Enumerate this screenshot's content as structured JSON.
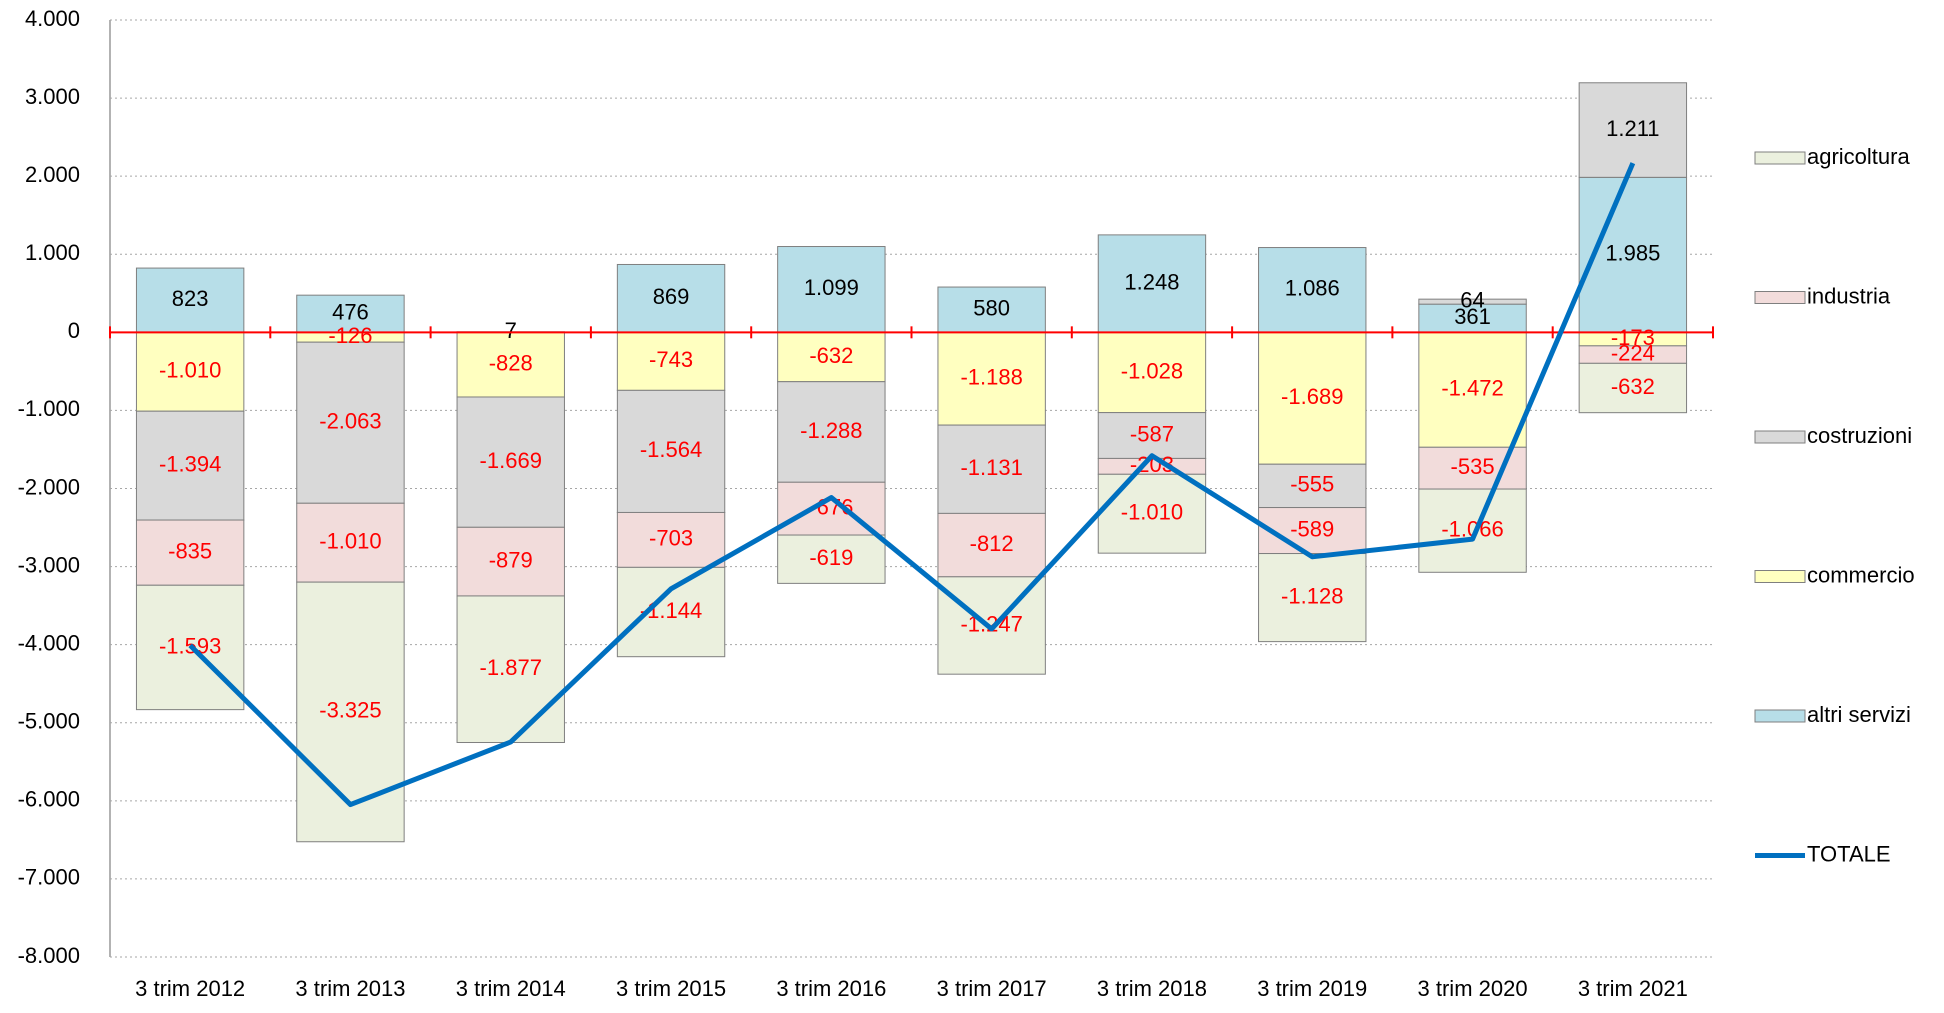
{
  "chart_data": {
    "type": "bar",
    "stacked": true,
    "categories": [
      "3 trim 2012",
      "3 trim 2013",
      "3 trim 2014",
      "3 trim 2015",
      "3 trim 2016",
      "3 trim 2017",
      "3 trim 2018",
      "3 trim 2019",
      "3 trim 2020",
      "3 trim 2021"
    ],
    "series": [
      {
        "name": "altri servizi",
        "color": "#b7dee8",
        "values": [
          823,
          476,
          7,
          869,
          1099,
          580,
          1248,
          1086,
          361,
          1985
        ],
        "value_labels": [
          "823",
          "476",
          "7",
          "869",
          "1.099",
          "580",
          "1.248",
          "1.086",
          "361",
          "1.985"
        ]
      },
      {
        "name": "commercio",
        "color": "#ffffc0",
        "values": [
          -1010,
          -126,
          -828,
          -743,
          -632,
          -1188,
          -1028,
          -1689,
          -1472,
          -173
        ],
        "value_labels": [
          "-1.010",
          "-126",
          "-828",
          "-743",
          "-632",
          "-1.188",
          "-1.028",
          "-1.689",
          "-1.472",
          "-173"
        ]
      },
      {
        "name": "costruzioni",
        "color": "#d9d9d9",
        "values": [
          -1394,
          -2063,
          -1669,
          -1564,
          -1288,
          -1131,
          -587,
          -555,
          64,
          1211
        ],
        "value_labels": [
          "-1.394",
          "-2.063",
          "-1.669",
          "-1.564",
          "-1.288",
          "-1.131",
          "-587",
          "-555",
          "64",
          "1.211"
        ]
      },
      {
        "name": "industria",
        "color": "#f2dcdb",
        "values": [
          -835,
          -1010,
          -879,
          -703,
          -676,
          -812,
          -203,
          -589,
          -535,
          -224
        ],
        "value_labels": [
          "-835",
          "-1.010",
          "-879",
          "-703",
          "-676",
          "-812",
          "-203",
          "-589",
          "-535",
          "-224"
        ]
      },
      {
        "name": "agricoltura",
        "color": "#ebf0de",
        "values": [
          -1593,
          -3325,
          -1877,
          -1144,
          -619,
          -1247,
          -1010,
          -1128,
          -1066,
          -632
        ],
        "value_labels": [
          "-1.593",
          "-3.325",
          "-1.877",
          "-1.144",
          "-619",
          "-1.247",
          "-1.010",
          "-1.128",
          "-1.066",
          "-632"
        ]
      },
      {
        "name": "TOTALE",
        "type": "line",
        "color": "#0070c0",
        "values": [
          -4009,
          -6048,
          -5246,
          -3285,
          -2116,
          -3798,
          -1580,
          -2875,
          -2648,
          2167
        ]
      }
    ],
    "ylim": [
      -8000,
      4000
    ],
    "yticks": [
      {
        "value": -8000,
        "label": "-8.000"
      },
      {
        "value": -7000,
        "label": "-7.000"
      },
      {
        "value": -6000,
        "label": "-6.000"
      },
      {
        "value": -5000,
        "label": "-5.000"
      },
      {
        "value": -4000,
        "label": "-4.000"
      },
      {
        "value": -3000,
        "label": "-3.000"
      },
      {
        "value": -2000,
        "label": "-2.000"
      },
      {
        "value": -1000,
        "label": "-1.000"
      },
      0,
      {
        "value": 1000,
        "label": "1.000"
      },
      {
        "value": 2000,
        "label": "2.000"
      },
      {
        "value": 3000,
        "label": "3.000"
      },
      {
        "value": 4000,
        "label": "4.000"
      }
    ],
    "grid": true,
    "legend": "right",
    "zero_line_color": "#ff0000",
    "positive_label_color": "#000000",
    "negative_label_color": "#ff0000"
  }
}
